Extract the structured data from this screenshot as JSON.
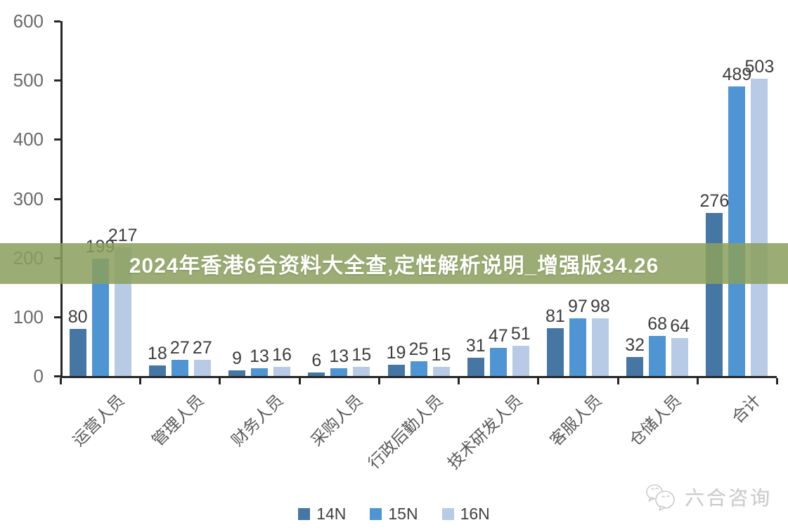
{
  "banner": {
    "text": "2024年香港6合资料大全查,定性解析说明_增强版34.26",
    "bg_color": "#8a9f5d",
    "bg_alpha": 0.86,
    "text_color": "#ffffff"
  },
  "watermark": {
    "text": "六合咨询",
    "icon": "wechat-icon",
    "color": "#cccccc"
  },
  "chart_data": {
    "type": "bar",
    "title": "",
    "xlabel": "",
    "ylabel": "",
    "categories": [
      "运营人员",
      "管理人员",
      "财务人员",
      "采购人员",
      "行政后勤人员",
      "技术研发人员",
      "客服人员",
      "仓储人员",
      "合计"
    ],
    "series": [
      {
        "name": "14N",
        "color": "#4677a4",
        "values": [
          80,
          18,
          9,
          6,
          19,
          31,
          81,
          32,
          276
        ]
      },
      {
        "name": "15N",
        "color": "#4f94d3",
        "values": [
          199,
          27,
          13,
          13,
          25,
          47,
          97,
          68,
          489
        ]
      },
      {
        "name": "16N",
        "color": "#b7cbe7",
        "values": [
          217,
          27,
          16,
          15,
          15,
          51,
          98,
          64,
          503
        ]
      }
    ],
    "ylim": [
      0,
      600
    ],
    "yticks": [
      0,
      100,
      200,
      300,
      400,
      500,
      600
    ],
    "grid": false,
    "legend_position": "bottom",
    "axis_color": "#262626",
    "tick_label_color": "#6a6a6a",
    "data_label_color": "#3d3d3d",
    "category_label_rotation_deg": -45
  }
}
